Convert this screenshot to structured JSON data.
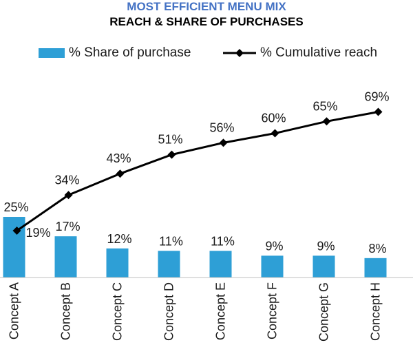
{
  "chart_data": {
    "type": "bar",
    "title": "MOST EFFICIENT MENU MIX",
    "subtitle": "REACH & SHARE OF PURCHASES",
    "categories": [
      "Concept A",
      "Concept B",
      "Concept C",
      "Concept D",
      "Concept E",
      "Concept F",
      "Concept G",
      "Concept H"
    ],
    "series": [
      {
        "name": "% Share of purchase",
        "type": "bar",
        "values": [
          25,
          17,
          12,
          11,
          11,
          9,
          9,
          8
        ],
        "labels": [
          "25%",
          "17%",
          "12%",
          "11%",
          "11%",
          "9%",
          "9%",
          "8%"
        ],
        "color": "#2e9fd6"
      },
      {
        "name": "% Cumulative reach",
        "type": "line",
        "marker": "diamond",
        "values": [
          19,
          34,
          43,
          51,
          56,
          60,
          65,
          69
        ],
        "labels": [
          "19%",
          "34%",
          "43%",
          "51%",
          "56%",
          "60%",
          "65%",
          "69%"
        ],
        "color": "#000000"
      }
    ],
    "legend": "top",
    "grid": false
  },
  "colors": {
    "title": "#4472c4",
    "subtitle": "#000000",
    "bar": "#2e9fd6",
    "line": "#000000"
  }
}
